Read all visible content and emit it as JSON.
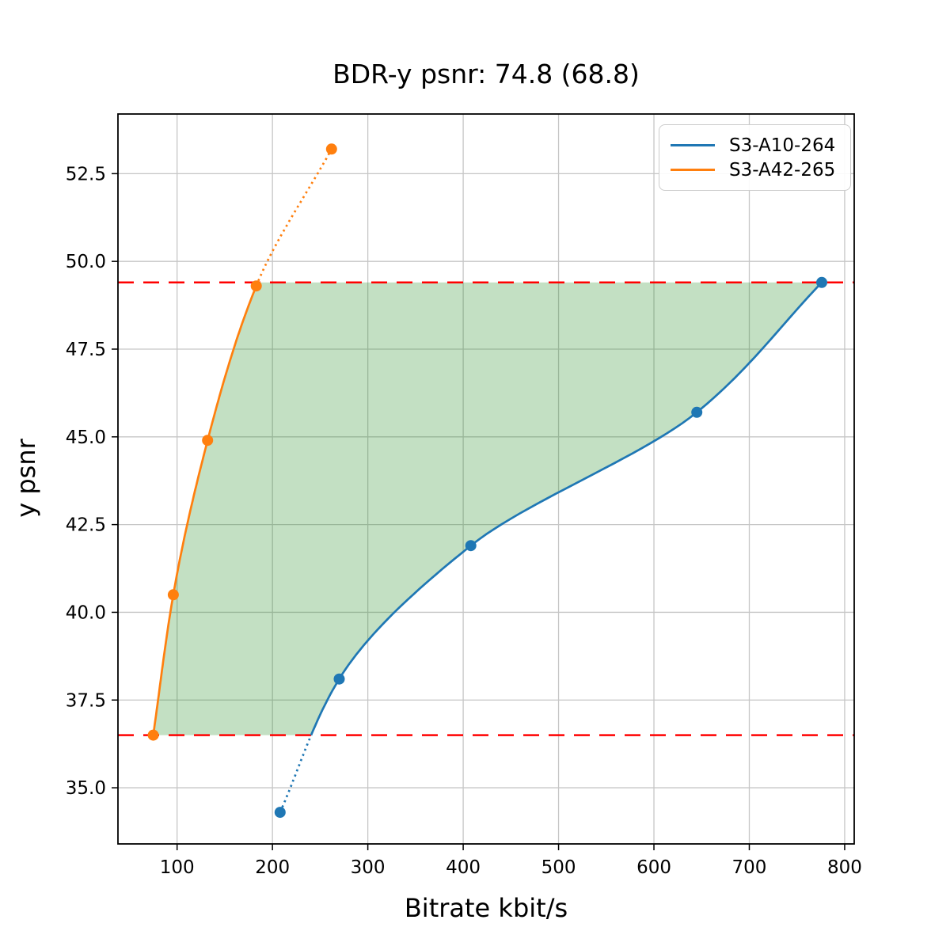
{
  "title": "BDR-y psnr: 74.8 (68.8)",
  "chart_data": {
    "type": "line",
    "title": "BDR-y psnr: 74.8 (68.8)",
    "xlabel": "Bitrate kbit/s",
    "ylabel": "y psnr",
    "xlim": [
      38,
      810
    ],
    "ylim": [
      33.4,
      54.2
    ],
    "x_ticks": [
      100,
      200,
      300,
      400,
      500,
      600,
      700,
      800
    ],
    "x_ticklabels": [
      "100",
      "200",
      "300",
      "400",
      "500",
      "600",
      "700",
      "800"
    ],
    "y_ticks": [
      35.0,
      37.5,
      40.0,
      42.5,
      45.0,
      47.5,
      50.0,
      52.5
    ],
    "y_ticklabels": [
      "35.0",
      "37.5",
      "40.0",
      "42.5",
      "45.0",
      "47.5",
      "50.0",
      "52.5"
    ],
    "grid": true,
    "legend_position": "upper right",
    "series": [
      {
        "name": "S3-A10-264",
        "color": "#1f77b4",
        "points": [
          [
            208,
            34.3
          ],
          [
            270,
            38.1
          ],
          [
            408,
            41.9
          ],
          [
            645,
            45.7
          ],
          [
            776,
            49.4
          ]
        ],
        "segments": [
          {
            "style": "dotted",
            "y_range": [
              34.3,
              36.5
            ]
          },
          {
            "style": "solid",
            "y_range": [
              36.5,
              49.4
            ]
          }
        ]
      },
      {
        "name": "S3-A42-265",
        "color": "#ff7f0e",
        "points": [
          [
            75,
            36.5
          ],
          [
            96,
            40.5
          ],
          [
            132,
            44.9
          ],
          [
            183,
            49.3
          ],
          [
            262,
            53.2
          ]
        ],
        "segments": [
          {
            "style": "solid",
            "y_range": [
              36.5,
              49.3
            ]
          },
          {
            "style": "dotted",
            "y_range": [
              49.3,
              53.2
            ]
          }
        ]
      }
    ],
    "hlines": [
      {
        "y": 49.4,
        "color": "#ff0000",
        "style": "dashed"
      },
      {
        "y": 36.5,
        "color": "#ff0000",
        "style": "dashed"
      }
    ],
    "shaded_region": {
      "between": [
        "S3-A42-265",
        "S3-A10-264"
      ],
      "y_range": [
        36.5,
        49.4
      ],
      "color": "#228b22",
      "opacity": 0.27
    },
    "grid_color": "#c6c6c6",
    "spine_color": "#000000"
  }
}
